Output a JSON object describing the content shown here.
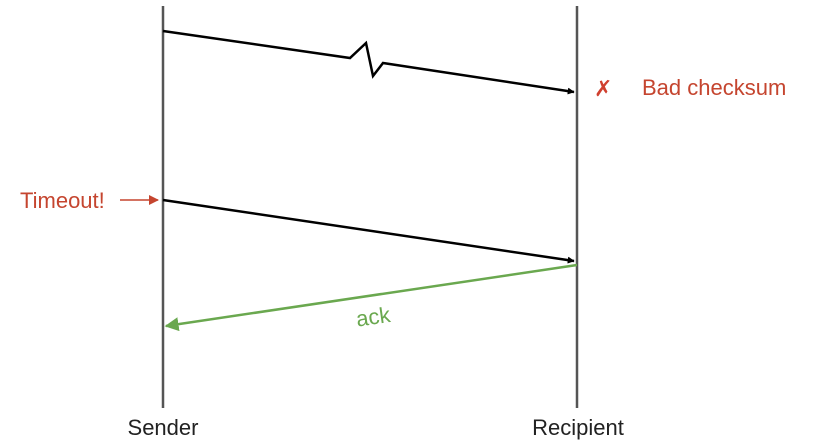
{
  "participants": {
    "sender": "Sender",
    "recipient": "Recipient"
  },
  "annotations": {
    "bad_checksum": "Bad checksum",
    "bad_checksum_mark": "✗",
    "timeout": "Timeout!",
    "ack": "ack"
  },
  "messages": [
    {
      "id": "corrupted-data",
      "from": "sender",
      "to": "recipient",
      "corrupted": true
    },
    {
      "id": "retransmitted-data",
      "from": "sender",
      "to": "recipient",
      "corrupted": false
    },
    {
      "id": "ack",
      "from": "recipient",
      "to": "sender",
      "label": "ack"
    }
  ],
  "colors": {
    "line": "#555555",
    "arrow": "#000000",
    "error": "#c5452f",
    "ack": "#6aa84f"
  }
}
